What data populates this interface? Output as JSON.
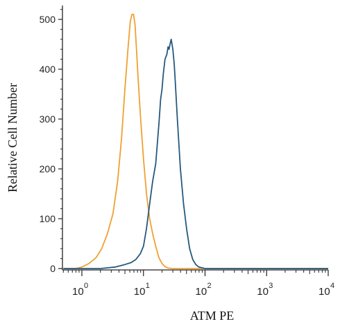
{
  "chart_data": {
    "type": "line",
    "title": "",
    "xlabel": "ATM PE",
    "ylabel": "Relative Cell Number",
    "x_scale": "log",
    "xlim": [
      0.5,
      10000
    ],
    "ylim": [
      0,
      540
    ],
    "x_ticks": [
      {
        "base": "10",
        "exp": "0",
        "value": 1
      },
      {
        "base": "10",
        "exp": "1",
        "value": 10
      },
      {
        "base": "10",
        "exp": "2",
        "value": 100
      },
      {
        "base": "10",
        "exp": "3",
        "value": 1000
      },
      {
        "base": "10",
        "exp": "4",
        "value": 10000
      }
    ],
    "y_ticks": [
      "0",
      "100",
      "200",
      "300",
      "400",
      "500"
    ],
    "grid": false,
    "legend": "none",
    "series": [
      {
        "color": "#f0a030",
        "x": [
          0.5,
          0.8,
          1.0,
          1.3,
          1.7,
          2.1,
          2.6,
          3.2,
          3.8,
          4.4,
          5.0,
          5.6,
          6.1,
          6.5,
          6.9,
          7.3,
          7.7,
          8.2,
          9.0,
          10.0,
          11.2,
          12.6,
          14.1,
          15.8,
          17.8,
          20.0,
          22.4,
          25.1,
          30.0,
          40.0,
          60.0,
          10000
        ],
        "y": [
          0,
          0,
          3,
          10,
          22,
          40,
          70,
          110,
          175,
          260,
          360,
          440,
          495,
          510,
          510,
          490,
          440,
          380,
          300,
          220,
          150,
          100,
          70,
          45,
          22,
          10,
          4,
          1,
          0,
          0,
          0,
          0
        ]
      },
      {
        "color": "#25587e",
        "x": [
          0.5,
          2.0,
          3.5,
          5.0,
          6.3,
          7.5,
          8.9,
          10.0,
          11.2,
          12.6,
          14.1,
          15.8,
          17.8,
          19.0,
          20.0,
          21.0,
          22.4,
          24.0,
          25.1,
          26.0,
          27.0,
          28.2,
          30.0,
          31.6,
          33.0,
          35.5,
          39.8,
          44.7,
          50.1,
          56.2,
          63.1,
          70.8,
          79.4,
          100,
          10000
        ],
        "y": [
          0,
          0,
          3,
          8,
          12,
          18,
          30,
          45,
          80,
          130,
          175,
          210,
          290,
          340,
          360,
          390,
          420,
          430,
          445,
          440,
          450,
          460,
          440,
          410,
          370,
          300,
          200,
          130,
          80,
          40,
          18,
          8,
          3,
          0,
          0
        ]
      }
    ]
  }
}
